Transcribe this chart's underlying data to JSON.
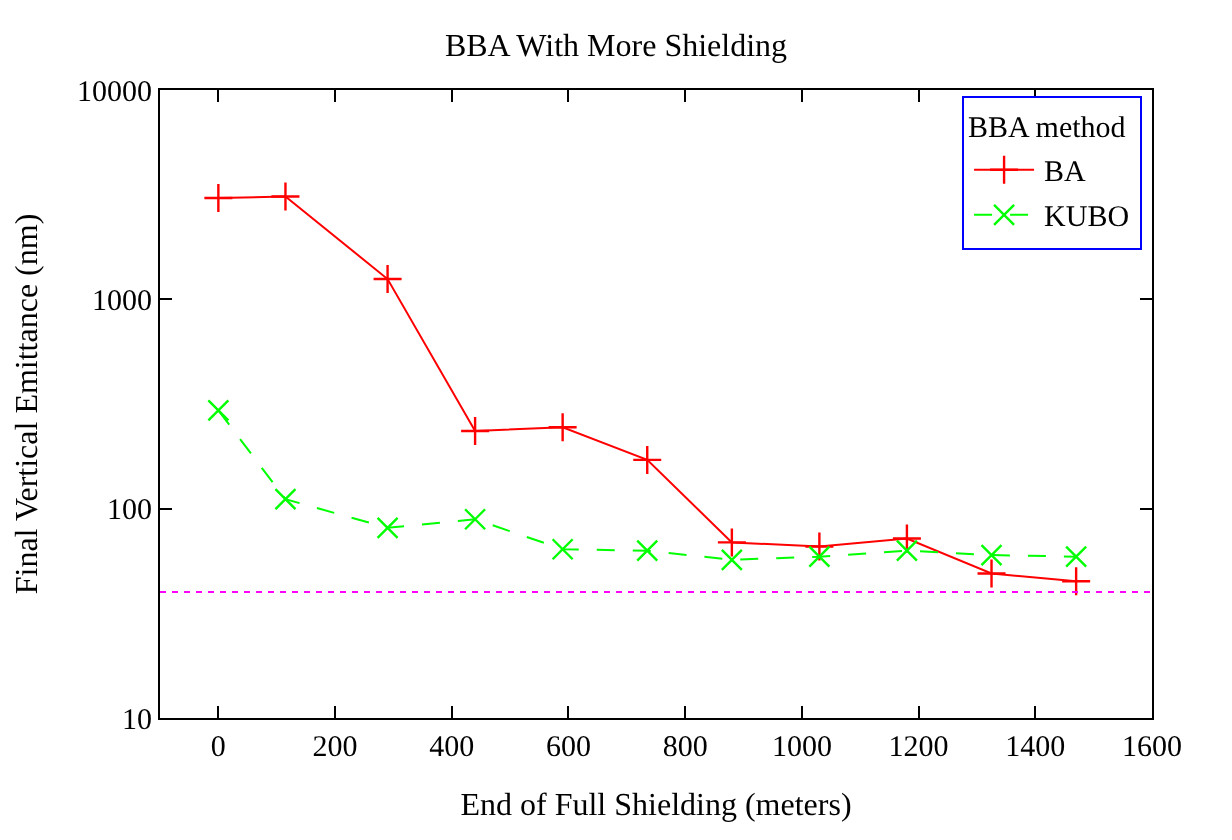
{
  "chart_data": {
    "type": "line",
    "title": "BBA With More Shielding",
    "xlabel": "End of Full Shielding (meters)",
    "ylabel": "Final Vertical Emittance (nm)",
    "legend_title": "BBA method",
    "legend": "top right",
    "log": "y",
    "xlim": [
      -100,
      1600
    ],
    "xticks": [
      0,
      200,
      400,
      600,
      800,
      1000,
      1200,
      1400,
      1600
    ],
    "ylim": [
      10,
      10000
    ],
    "yticks": [
      10,
      100,
      1000,
      10000
    ],
    "x": [
      0,
      115,
      290,
      440,
      590,
      735,
      880,
      1030,
      1180,
      1325,
      1470
    ],
    "series": [
      {
        "name": "BA",
        "color": "#ff0000",
        "marker": "cross",
        "line_style": "solid",
        "values": [
          3050,
          3100,
          1250,
          235,
          245,
          171,
          69,
          66,
          72,
          49,
          45
        ]
      },
      {
        "name": "KUBO",
        "color": "#00ff00",
        "marker": "x",
        "line_style": "dashed",
        "values": [
          295,
          111,
          81,
          89,
          64,
          63,
          57,
          59,
          63,
          60,
          59
        ]
      }
    ],
    "ref_lines": [
      {
        "axis": "y",
        "value": 40,
        "color": "#ff00ff",
        "line_style": "dotted"
      }
    ]
  }
}
